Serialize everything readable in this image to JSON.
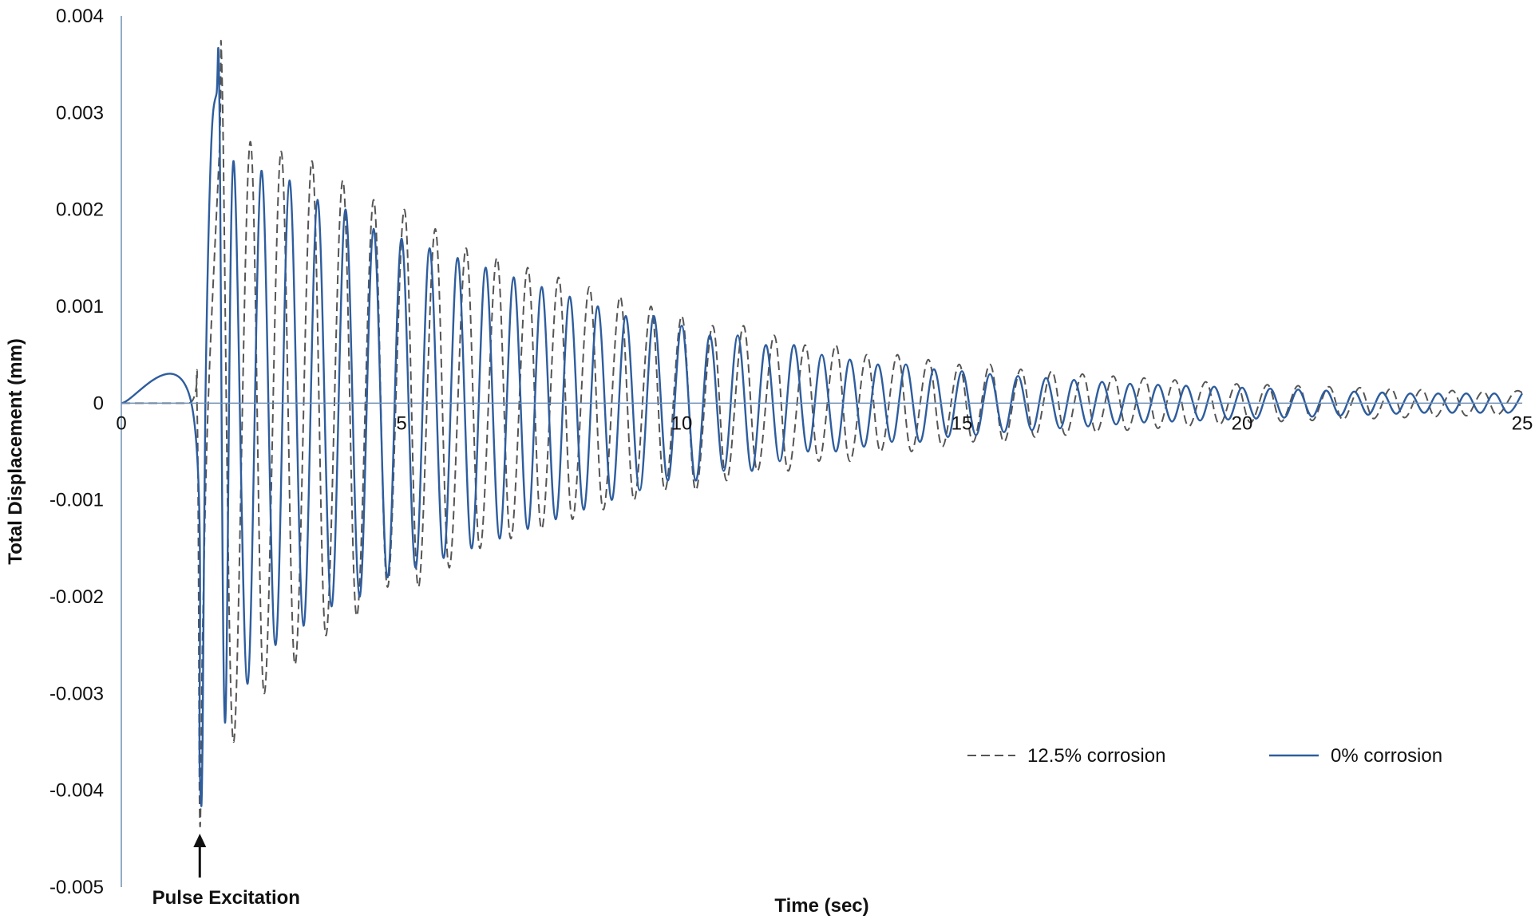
{
  "chart_data": {
    "type": "line",
    "title": "",
    "xlabel": "Time (sec)",
    "ylabel": "Total Displacement (mm)",
    "xlim": [
      0,
      25
    ],
    "ylim": [
      -0.005,
      0.004
    ],
    "x_ticks": [
      "0",
      "5",
      "10",
      "15",
      "20",
      "25"
    ],
    "y_ticks": [
      "0.004",
      "0.003",
      "0.002",
      "0.001",
      "0",
      "-0.001",
      "-0.002",
      "-0.003",
      "-0.004",
      "-0.005"
    ],
    "grid": false,
    "legend_position": "bottom-right",
    "annotation": {
      "text": "Pulse Excitation",
      "x": 1.4
    },
    "series": [
      {
        "name": "12.5% corrosion",
        "style": "dashed",
        "color": "#555555",
        "x": [
          0,
          1.2,
          1.35,
          1.4,
          1.45,
          1.55,
          1.75,
          1.8,
          2.0,
          2.3,
          2.55,
          2.85,
          3.1,
          3.4,
          3.65,
          3.95,
          4.2,
          4.5,
          4.75,
          5.05,
          5.3,
          5.6,
          5.85,
          6.15,
          6.4,
          6.7,
          6.95,
          7.25,
          7.5,
          7.8,
          8.05,
          8.35,
          8.6,
          8.9,
          9.15,
          9.45,
          9.7,
          10.0,
          10.25,
          10.55,
          10.8,
          11.1,
          11.35,
          11.65,
          11.9,
          12.2,
          12.45,
          12.75,
          13.0,
          13.3,
          13.55,
          13.85,
          14.1,
          14.4,
          14.65,
          14.95,
          15.2,
          15.5,
          15.75,
          16.05,
          16.3,
          16.6,
          16.85,
          17.15,
          17.4,
          17.7,
          17.95,
          18.25,
          18.5,
          18.8,
          19.05,
          19.35,
          19.6,
          19.9,
          20.15,
          20.45,
          20.7,
          21.0,
          21.25,
          21.55,
          21.8,
          22.1,
          22.35,
          22.65,
          22.9,
          23.2,
          23.45,
          23.75,
          24.0,
          24.3,
          24.55,
          24.85,
          25.0
        ],
        "y": [
          0,
          0,
          0,
          -0.0043,
          -0.0024,
          0,
          0.0026,
          0.0033,
          -0.0035,
          0.0027,
          -0.003,
          0.0026,
          -0.0027,
          0.0025,
          -0.0024,
          0.0023,
          -0.0022,
          0.0021,
          -0.0019,
          0.002,
          -0.0019,
          0.0018,
          -0.0017,
          0.0016,
          -0.0015,
          0.0015,
          -0.0014,
          0.0014,
          -0.0013,
          0.0013,
          -0.0012,
          0.0012,
          -0.0011,
          0.0011,
          -0.001,
          0.001,
          -0.0009,
          0.0009,
          -0.0009,
          0.0008,
          -0.0008,
          0.0008,
          -0.0007,
          0.0007,
          -0.0007,
          0.0006,
          -0.0006,
          0.0006,
          -0.0006,
          0.0005,
          -0.0005,
          0.0005,
          -0.0005,
          0.00045,
          -0.00045,
          0.0004,
          -0.0004,
          0.0004,
          -0.0004,
          0.00035,
          -0.00035,
          0.00033,
          -0.00033,
          0.0003,
          -0.0003,
          0.00028,
          -0.00028,
          0.00026,
          -0.00026,
          0.00024,
          -0.00024,
          0.00022,
          -0.00022,
          0.0002,
          -0.0002,
          0.00019,
          -0.00019,
          0.00018,
          -0.00018,
          0.00017,
          -0.00017,
          0.00016,
          -0.00016,
          0.00015,
          -0.00015,
          0.00014,
          -0.00014,
          0.00013,
          -0.00013,
          0.00012,
          -0.00012,
          0.00011,
          0.00011
        ]
      },
      {
        "name": "0% corrosion",
        "style": "solid",
        "color": "#2e5d9e",
        "x": [
          0,
          1.25,
          1.4,
          1.45,
          1.5,
          1.6,
          1.7,
          1.75,
          1.85,
          2.0,
          2.25,
          2.5,
          2.75,
          3.0,
          3.25,
          3.5,
          3.75,
          4.0,
          4.25,
          4.5,
          4.75,
          5.0,
          5.25,
          5.5,
          5.75,
          6.0,
          6.25,
          6.5,
          6.75,
          7.0,
          7.25,
          7.5,
          7.75,
          8.0,
          8.25,
          8.5,
          8.75,
          9.0,
          9.25,
          9.5,
          9.75,
          10.0,
          10.25,
          10.5,
          10.75,
          11.0,
          11.25,
          11.5,
          11.75,
          12.0,
          12.25,
          12.5,
          12.75,
          13.0,
          13.25,
          13.5,
          13.75,
          14.0,
          14.25,
          14.5,
          14.75,
          15.0,
          15.25,
          15.5,
          15.75,
          16.0,
          16.25,
          16.5,
          16.75,
          17.0,
          17.25,
          17.5,
          17.75,
          18.0,
          18.25,
          18.5,
          18.75,
          19.0,
          19.25,
          19.5,
          19.75,
          20.0,
          20.25,
          20.5,
          20.75,
          21.0,
          21.25,
          21.5,
          21.75,
          22.0,
          22.25,
          22.5,
          22.75,
          23.0,
          23.25,
          23.5,
          23.75,
          24.0,
          24.25,
          24.5,
          24.75,
          25.0
        ],
        "y": [
          0,
          0,
          -0.0038,
          -0.0035,
          0,
          0.0026,
          0.0032,
          0.0031,
          -0.0033,
          0.0025,
          -0.0029,
          0.0024,
          -0.0025,
          0.0023,
          -0.0023,
          0.0021,
          -0.0021,
          0.002,
          -0.002,
          0.0018,
          -0.0018,
          0.0017,
          -0.0017,
          0.0016,
          -0.0016,
          0.0015,
          -0.0015,
          0.0014,
          -0.0014,
          0.0013,
          -0.0013,
          0.0012,
          -0.0012,
          0.0011,
          -0.0011,
          0.001,
          -0.001,
          0.0009,
          -0.0009,
          0.0009,
          -0.0008,
          0.0008,
          -0.0008,
          0.0007,
          -0.0007,
          0.0007,
          -0.0007,
          0.0006,
          -0.0006,
          0.0006,
          -0.0005,
          0.0005,
          -0.0005,
          0.00045,
          -0.00045,
          0.0004,
          -0.0004,
          0.0004,
          -0.0004,
          0.00035,
          -0.00035,
          0.00033,
          -0.00033,
          0.0003,
          -0.0003,
          0.00028,
          -0.00028,
          0.00026,
          -0.00026,
          0.00024,
          -0.00024,
          0.00022,
          -0.00022,
          0.0002,
          -0.0002,
          0.00019,
          -0.00019,
          0.00018,
          -0.00018,
          0.00017,
          -0.00017,
          0.00016,
          -0.00016,
          0.00015,
          -0.00015,
          0.00014,
          -0.00014,
          0.00013,
          -0.00013,
          0.00012,
          -0.00012,
          0.00011,
          -0.00011,
          0.0001,
          -0.0001,
          0.0001,
          -0.0001,
          0.0001,
          -0.0001,
          0.0001,
          -0.0001,
          0.0001
        ]
      }
    ]
  }
}
